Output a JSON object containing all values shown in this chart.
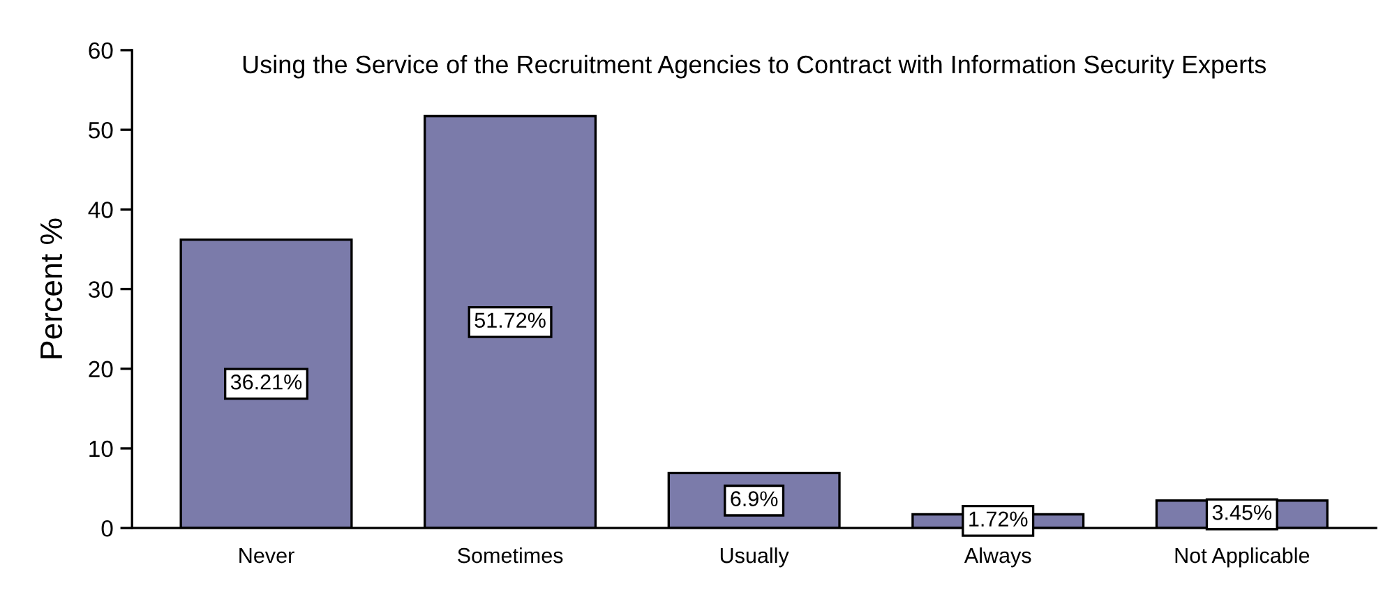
{
  "chart_data": {
    "type": "bar",
    "title": "Using the Service of the Recruitment Agencies to Contract with Information Security Experts",
    "ylabel": "Percent %",
    "categories": [
      "Never",
      "Sometimes",
      "Usually",
      "Always",
      "Not Applicable"
    ],
    "values": [
      36.21,
      51.72,
      6.9,
      1.72,
      3.45
    ],
    "value_labels": [
      "36.21%",
      "51.72%",
      "6.9%",
      "1.72%",
      "3.45%"
    ],
    "color": "#7b7baa",
    "ylim": [
      0,
      60
    ],
    "yticks": [
      0,
      10,
      20,
      30,
      40,
      50,
      60
    ],
    "grid": false,
    "legend": false
  }
}
